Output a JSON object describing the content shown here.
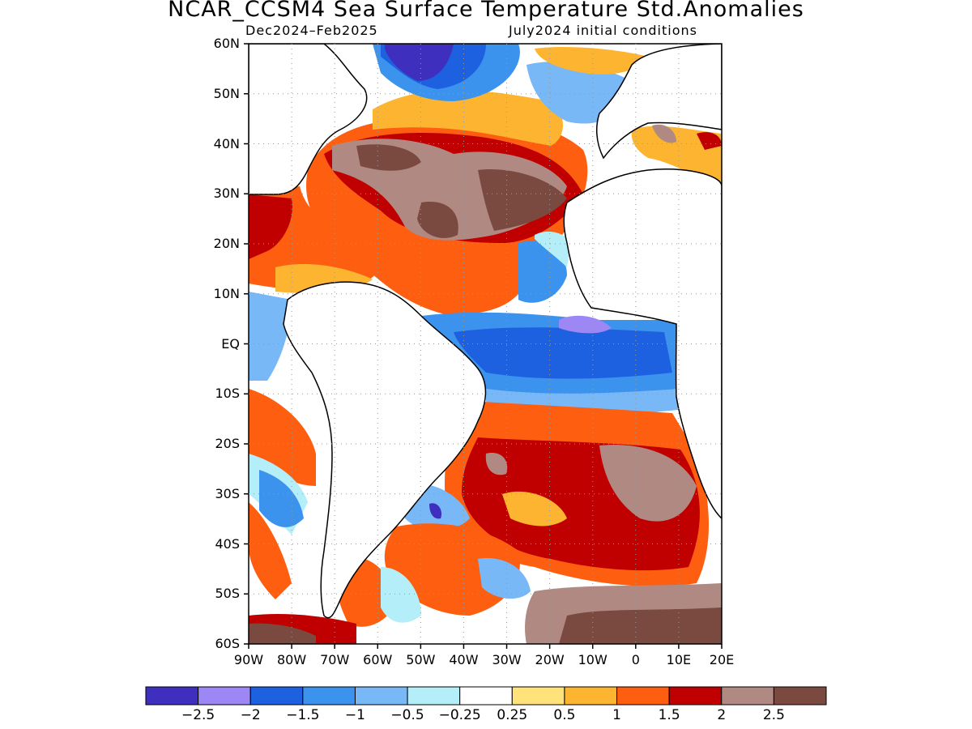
{
  "title": "NCAR_CCSM4 Sea Surface Temperature Std.Anomalies",
  "subtitle_left": "Dec2024–Feb2025",
  "subtitle_right": "July2024 initial conditions",
  "map": {
    "lon_range": [
      -90,
      20
    ],
    "lat_range": [
      -60,
      60
    ],
    "lat_labels": [
      "60N",
      "50N",
      "40N",
      "30N",
      "20N",
      "10N",
      "EQ",
      "10S",
      "20S",
      "30S",
      "40S",
      "50S",
      "60S"
    ],
    "lon_labels": [
      "90W",
      "80W",
      "70W",
      "60W",
      "50W",
      "40W",
      "30W",
      "20W",
      "10W",
      "0",
      "10E",
      "20E"
    ],
    "gridlines": "dotted, every 10 degrees"
  },
  "colorbar": {
    "colors": [
      "#3f2fbe",
      "#9d87f5",
      "#1d61e0",
      "#3c93ee",
      "#78b8f6",
      "#b4eef8",
      "#ffffff",
      "#ffe37a",
      "#fdb531",
      "#fd5e10",
      "#c00000",
      "#b08a82",
      "#7a4a40"
    ],
    "labels": [
      "−2.5",
      "−2",
      "−1.5",
      "−1",
      "−0.5",
      "−0.25",
      "0.25",
      "0.5",
      "1",
      "1.5",
      "2",
      "2.5"
    ]
  }
}
